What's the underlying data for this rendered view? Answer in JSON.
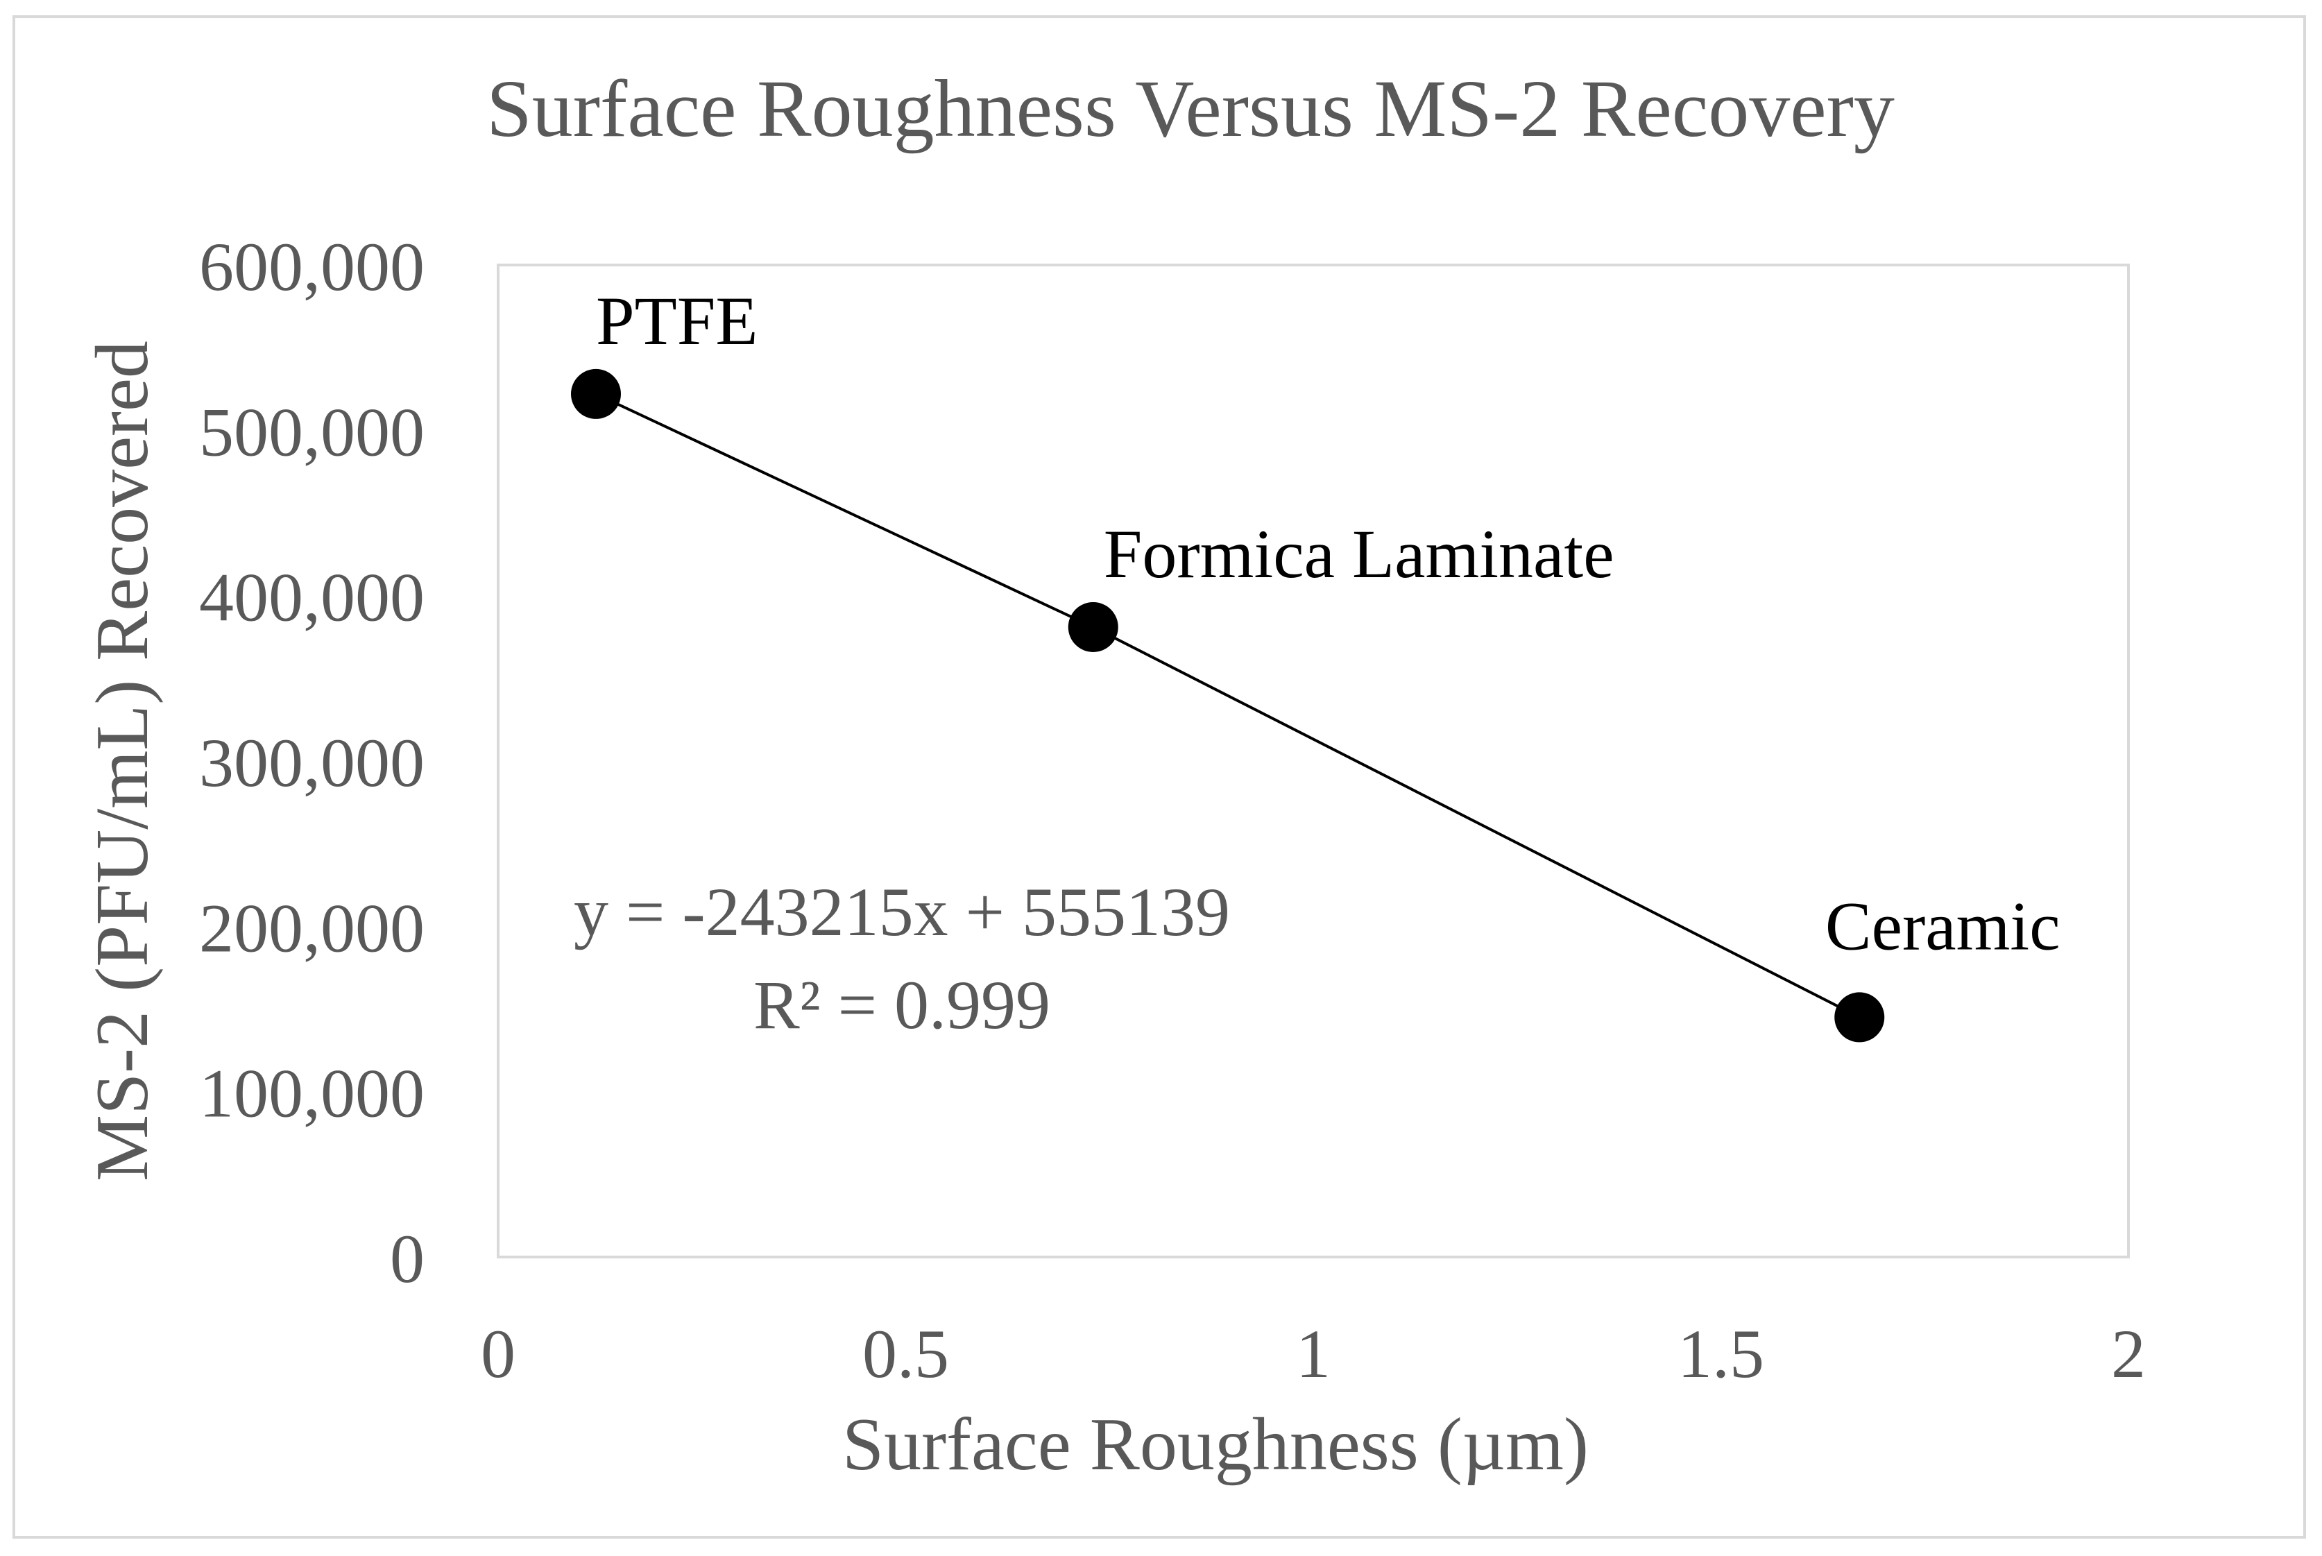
{
  "chart_data": {
    "type": "scatter",
    "title": "Surface Roughness Versus MS-2 Recovery",
    "xlabel": "Surface Roughness (µm)",
    "ylabel": "MS-2 (PFU/mL) Recovered",
    "xlim": [
      0,
      2
    ],
    "ylim": [
      0,
      600000
    ],
    "x_ticks": [
      0,
      0.5,
      1,
      1.5,
      2
    ],
    "x_tick_labels": [
      "0",
      "0.5",
      "1",
      "1.5",
      "2"
    ],
    "y_ticks": [
      0,
      100000,
      200000,
      300000,
      400000,
      500000,
      600000
    ],
    "y_tick_labels": [
      "0",
      "100,000",
      "200,000",
      "300,000",
      "400,000",
      "500,000",
      "600,000"
    ],
    "grid": false,
    "series": [
      {
        "name": "MS-2 Recovery",
        "points": [
          {
            "label": "PTFE",
            "x": 0.12,
            "y": 522000
          },
          {
            "label": "Formica Laminate",
            "x": 0.73,
            "y": 381000
          },
          {
            "label": "Ceramic",
            "x": 1.67,
            "y": 145000
          }
        ]
      }
    ],
    "trendline": {
      "type": "linear",
      "slope": -243215,
      "intercept": 555139,
      "equation": "y = -243215x + 555139",
      "r_squared": "R² = 0.999"
    },
    "colors": {
      "marker": "#000000",
      "line": "#000000",
      "axis_text": "#595959",
      "plot_border": "#d9d9d9"
    }
  }
}
